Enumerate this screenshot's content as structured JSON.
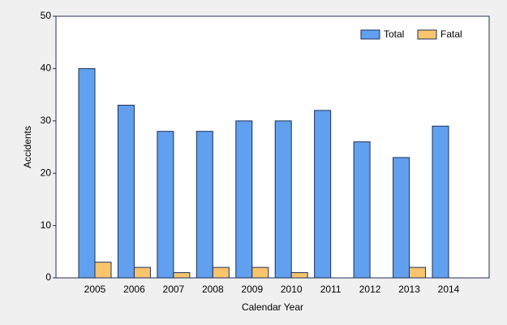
{
  "chart_data": {
    "type": "bar",
    "x_label": "Calendar Year",
    "y_label": "Accidents",
    "categories": [
      "2005",
      "2006",
      "2007",
      "2008",
      "2009",
      "2010",
      "2011",
      "2012",
      "2013",
      "2014"
    ],
    "series": [
      {
        "name": "Total",
        "color": "#61a0ee",
        "values": [
          40,
          33,
          28,
          28,
          30,
          30,
          32,
          26,
          23,
          29
        ]
      },
      {
        "name": "Fatal",
        "color": "#f8c46c",
        "values": [
          3,
          2,
          1,
          2,
          2,
          1,
          0,
          0,
          2,
          0
        ]
      }
    ],
    "ylim": [
      0,
      50
    ],
    "yticks": [
      0,
      10,
      20,
      30,
      40,
      50
    ],
    "grid": false,
    "legend": "top-right"
  }
}
